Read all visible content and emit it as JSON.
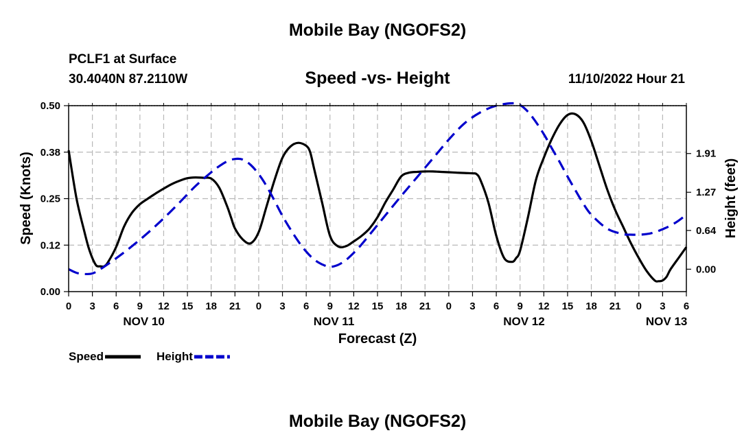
{
  "page": {
    "title": "Mobile Bay (NGOFS2)",
    "station": "PCLF1 at Surface",
    "coords": "30.4040N  87.2110W",
    "subtitle": "Speed -vs- Height",
    "datetime": "11/10/2022 Hour 21",
    "footer_title": "Mobile Bay (NGOFS2)"
  },
  "chart_data": {
    "type": "line",
    "xlabel": "Forecast (Z)",
    "ylabel_left": "Speed (Knots)",
    "ylabel_right": "Height (feet)",
    "x_range_hours": [
      0,
      78
    ],
    "ylim_left": [
      0,
      0.5
    ],
    "ylim_right": [
      -0.37,
      2.7
    ],
    "hour_tick_labels": [
      "0",
      "3",
      "6",
      "9",
      "12",
      "15",
      "18",
      "21",
      "0",
      "3",
      "6",
      "9",
      "12",
      "15",
      "18",
      "21",
      "0",
      "3",
      "6",
      "9",
      "12",
      "15",
      "18",
      "21",
      "0",
      "3",
      "6"
    ],
    "day_labels": [
      {
        "label": "NOV 10",
        "hour": 9.5
      },
      {
        "label": "NOV 11",
        "hour": 33.5
      },
      {
        "label": "NOV 12",
        "hour": 57.5
      },
      {
        "label": "NOV 13",
        "hour": 75.5
      }
    ],
    "left_ticks": [
      "0.00",
      "0.12",
      "0.25",
      "0.38",
      "0.50"
    ],
    "right_ticks": [
      "0.00",
      "0.64",
      "1.27",
      "1.91"
    ],
    "right_tick_values": [
      0.0,
      0.64,
      1.27,
      1.91
    ],
    "grid": true,
    "legend": [
      {
        "name": "Speed",
        "color": "#000000",
        "style": "solid"
      },
      {
        "name": "Height",
        "color": "#0000cc",
        "style": "dashed"
      }
    ],
    "series": [
      {
        "name": "Speed",
        "axis": "left",
        "color": "#000000",
        "x": [
          0,
          1,
          2,
          2.5,
          3,
          3.5,
          4,
          4.5,
          5,
          6,
          7,
          8,
          9,
          10,
          11,
          12,
          13,
          14,
          15,
          16,
          17,
          18,
          19,
          20,
          20.5,
          21,
          22,
          23,
          24,
          25,
          26,
          27,
          28,
          29,
          30,
          30.5,
          31,
          32,
          33,
          34,
          35,
          36,
          37,
          38,
          39,
          40,
          41,
          42,
          43,
          44,
          45,
          46,
          47,
          48,
          49,
          50,
          51,
          51.5,
          52,
          53,
          54,
          55,
          56,
          56.5,
          57,
          58,
          59,
          60,
          61,
          62,
          63,
          64,
          65,
          66,
          67,
          68,
          69,
          70,
          71,
          72,
          73,
          74,
          74.5,
          75,
          75.5,
          76,
          77,
          78
        ],
        "y": [
          0.38,
          0.25,
          0.16,
          0.12,
          0.09,
          0.07,
          0.068,
          0.068,
          0.08,
          0.12,
          0.175,
          0.212,
          0.235,
          0.25,
          0.264,
          0.277,
          0.289,
          0.298,
          0.305,
          0.307,
          0.306,
          0.304,
          0.28,
          0.23,
          0.2,
          0.17,
          0.14,
          0.13,
          0.16,
          0.23,
          0.3,
          0.36,
          0.39,
          0.4,
          0.392,
          0.375,
          0.33,
          0.24,
          0.15,
          0.122,
          0.122,
          0.135,
          0.15,
          0.17,
          0.2,
          0.24,
          0.275,
          0.31,
          0.32,
          0.322,
          0.323,
          0.323,
          0.322,
          0.321,
          0.32,
          0.319,
          0.318,
          0.316,
          0.3,
          0.24,
          0.15,
          0.09,
          0.08,
          0.09,
          0.11,
          0.2,
          0.3,
          0.36,
          0.41,
          0.45,
          0.475,
          0.477,
          0.455,
          0.405,
          0.34,
          0.275,
          0.22,
          0.175,
          0.13,
          0.09,
          0.055,
          0.03,
          0.028,
          0.03,
          0.04,
          0.06,
          0.09,
          0.12
        ]
      },
      {
        "name": "Height",
        "axis": "right",
        "color": "#0000cc",
        "x": [
          0,
          1,
          2,
          3,
          4,
          6,
          8,
          10,
          12,
          14,
          16,
          18,
          19,
          20,
          21,
          22,
          23,
          24,
          25,
          26,
          27,
          28,
          29,
          30,
          31,
          32,
          33,
          34,
          35,
          36,
          37,
          38,
          39,
          40,
          42,
          44,
          46,
          48,
          50,
          52,
          54,
          56,
          57,
          58,
          59,
          60,
          61,
          62,
          63,
          64,
          65,
          66,
          68,
          70,
          71,
          72,
          73,
          74,
          75,
          76,
          77,
          78
        ],
        "y": [
          0.0,
          -0.06,
          -0.08,
          -0.07,
          0.0,
          0.18,
          0.38,
          0.6,
          0.84,
          1.1,
          1.37,
          1.6,
          1.7,
          1.78,
          1.82,
          1.81,
          1.72,
          1.57,
          1.37,
          1.13,
          0.88,
          0.66,
          0.46,
          0.29,
          0.16,
          0.08,
          0.04,
          0.07,
          0.15,
          0.27,
          0.41,
          0.57,
          0.73,
          0.89,
          1.21,
          1.52,
          1.83,
          2.14,
          2.41,
          2.59,
          2.7,
          2.74,
          2.71,
          2.6,
          2.43,
          2.23,
          2.0,
          1.77,
          1.53,
          1.3,
          1.08,
          0.9,
          0.67,
          0.58,
          0.57,
          0.57,
          0.58,
          0.61,
          0.66,
          0.72,
          0.8,
          0.9
        ]
      }
    ]
  }
}
